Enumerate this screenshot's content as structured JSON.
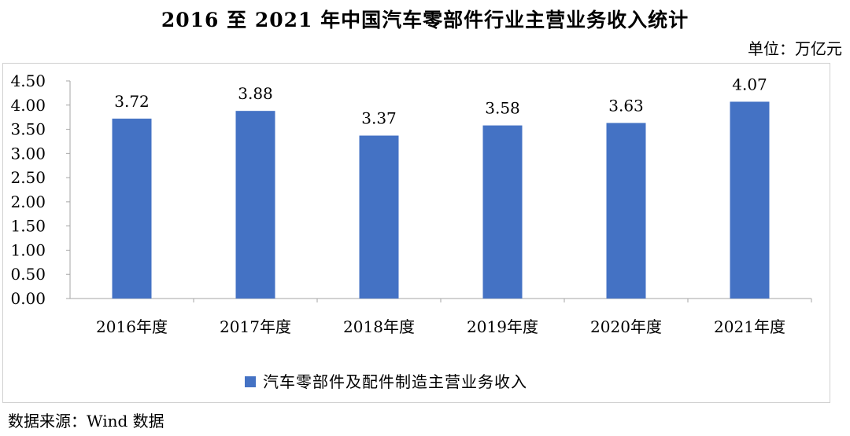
{
  "page": {
    "title": "2016 至 2021 年中国汽车零部件行业主营业务收入统计",
    "unit": "单位：万亿元",
    "source": "数据来源：Wind 数据"
  },
  "colors": {
    "bar": "#4472c4",
    "axis": "#a6a6a6",
    "text": "#000000"
  },
  "chart_data": {
    "type": "bar",
    "title": "2016 至 2021 年中国汽车零部件行业主营业务收入统计",
    "categories": [
      "2016年度",
      "2017年度",
      "2018年度",
      "2019年度",
      "2020年度",
      "2021年度"
    ],
    "series": [
      {
        "name": "汽车零部件及配件制造主营业务收入",
        "values": [
          3.72,
          3.88,
          3.37,
          3.58,
          3.63,
          4.07
        ]
      }
    ],
    "value_labels": [
      "3.72",
      "3.88",
      "3.37",
      "3.58",
      "3.63",
      "4.07"
    ],
    "ylim": [
      0,
      4.5
    ],
    "yticks": [
      "0.00",
      "0.50",
      "1.00",
      "1.50",
      "2.00",
      "2.50",
      "3.00",
      "3.50",
      "4.00",
      "4.50"
    ],
    "xlabel": "",
    "ylabel": "",
    "grid": false,
    "legend_position": "bottom"
  }
}
